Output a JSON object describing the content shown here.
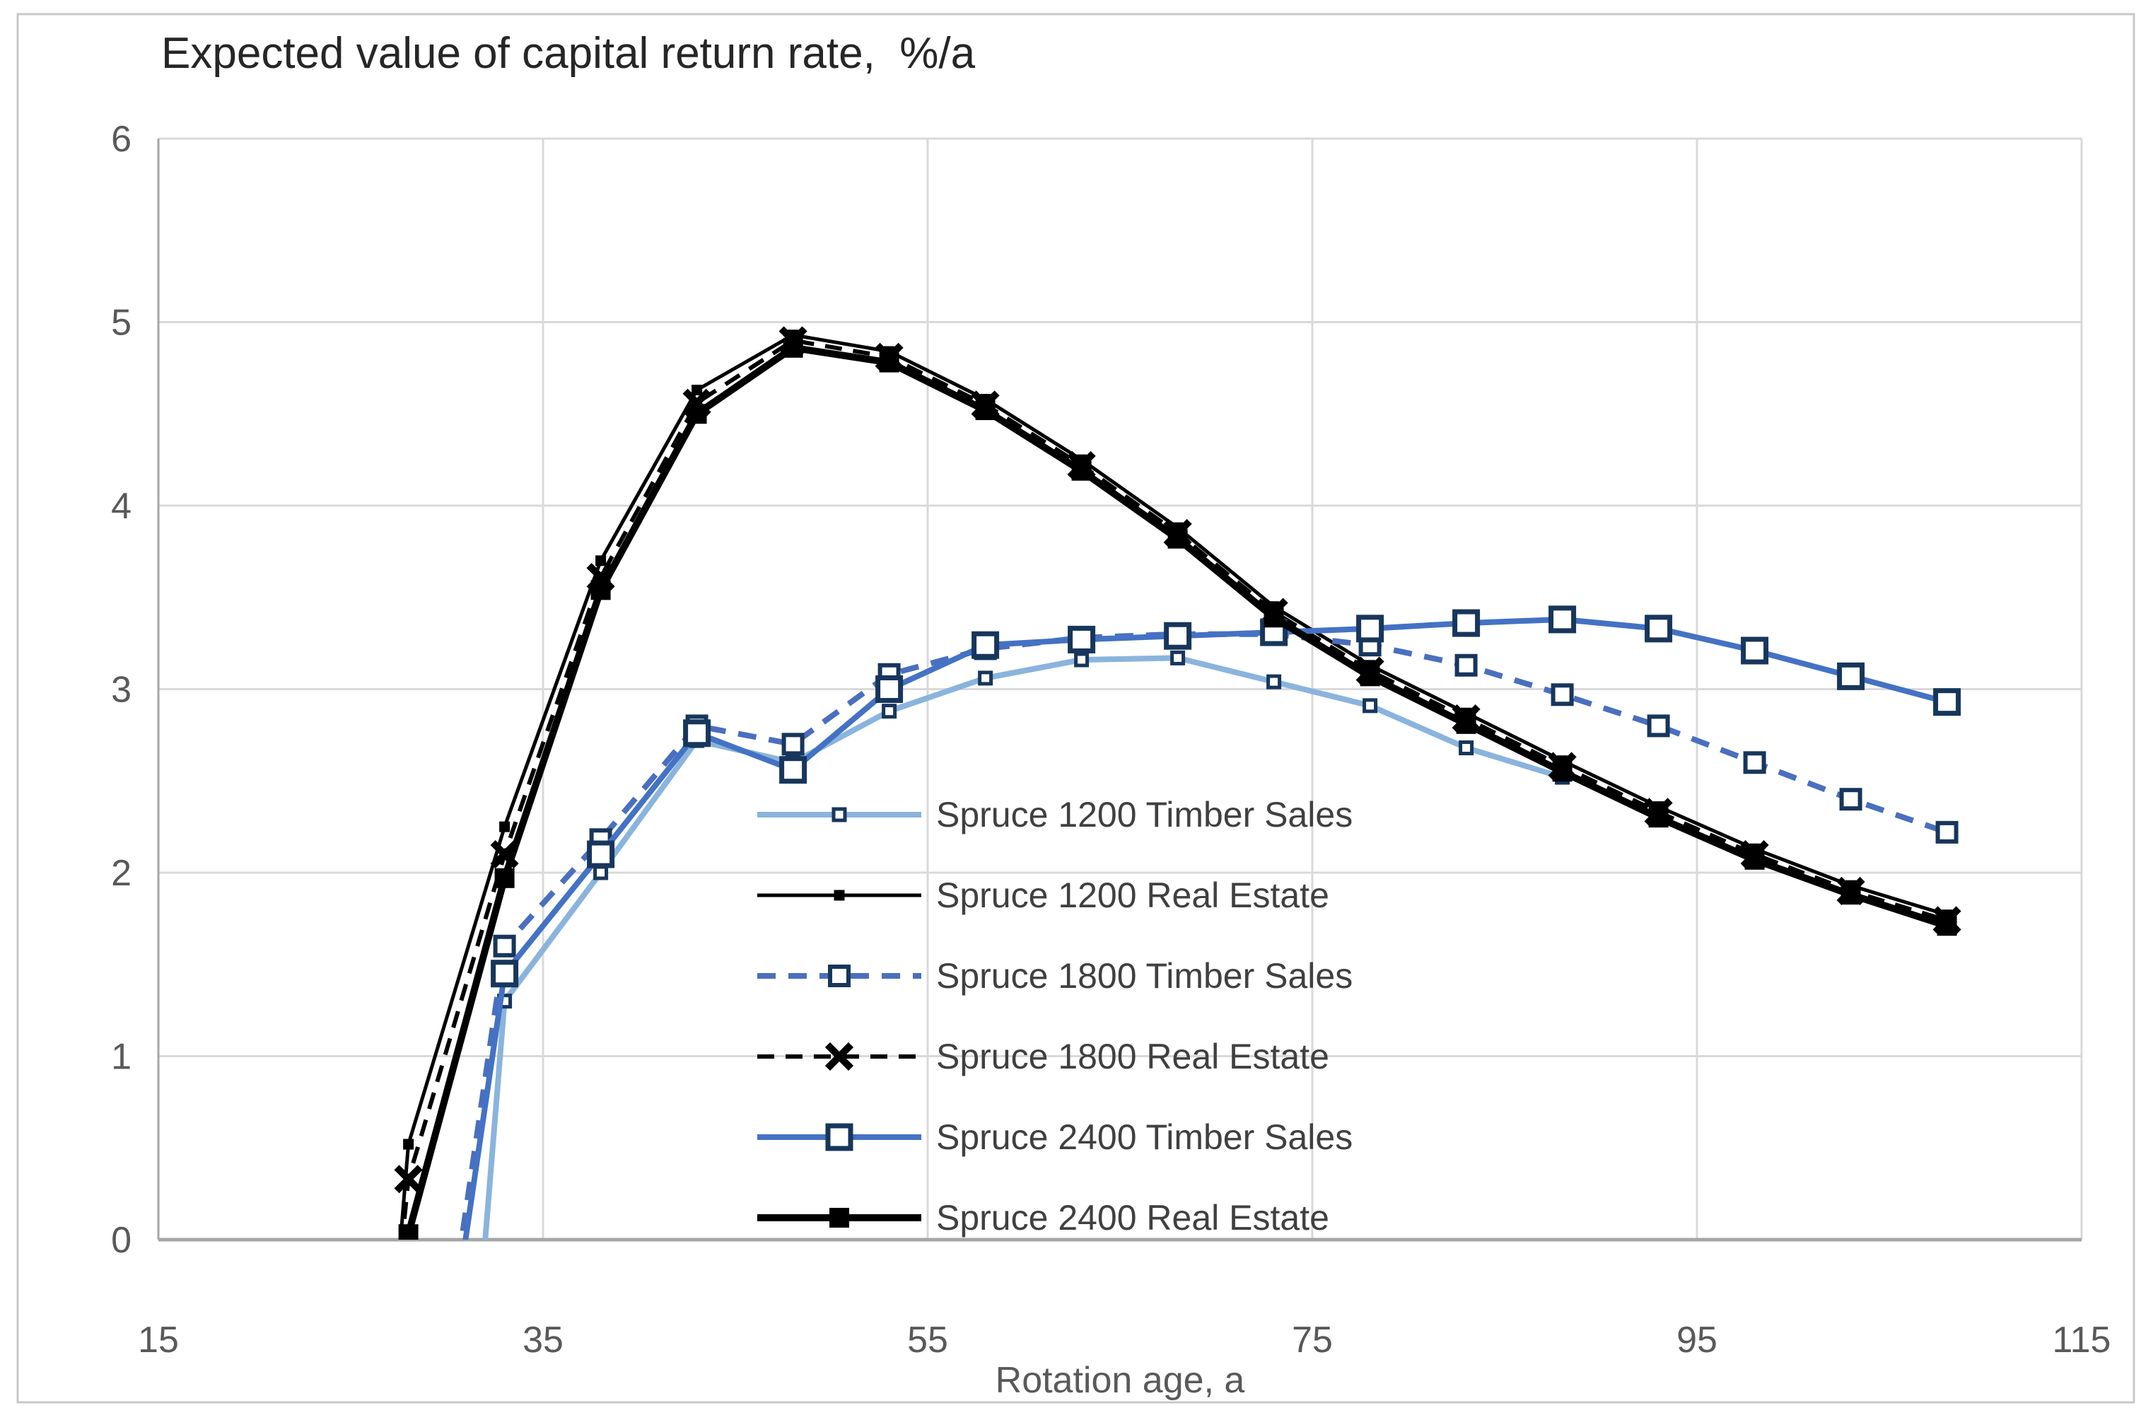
{
  "chart_data": {
    "type": "line",
    "title": "Expected value of capital return rate,  %/a",
    "xlabel": "Rotation age, a",
    "ylabel": "",
    "xlim": [
      15,
      115
    ],
    "ylim": [
      0,
      6
    ],
    "x_ticks": [
      "15",
      "35",
      "55",
      "75",
      "95",
      "115"
    ],
    "x_tick_values": [
      15,
      35,
      55,
      75,
      95,
      115
    ],
    "y_ticks": [
      "0",
      "1",
      "2",
      "3",
      "4",
      "5",
      "6"
    ],
    "y_tick_values": [
      0,
      1,
      2,
      3,
      4,
      5,
      6
    ],
    "grid": "on",
    "legend_position": "inside-center",
    "style": {
      "background": "#ffffff",
      "outer_border": "#c8c8c8",
      "gridline_color": "#d9d9d9",
      "axis_color": "#a6a6a6",
      "tick_text_color": "#595959",
      "title_color": "#262626",
      "legend_text_color": "#404040",
      "marker_edge_color": "#17365c"
    },
    "series": [
      {
        "name": "Spruce 1200 Timber Sales",
        "color": "#8ab4dd",
        "line_width": 8,
        "dash": null,
        "marker": {
          "shape": "square-open",
          "size": 16,
          "stroke": 5
        },
        "line_start": [
          31.9,
          -0.12
        ],
        "points": [
          [
            33,
            1.3
          ],
          [
            38,
            2.0
          ],
          [
            43,
            2.72
          ],
          [
            48,
            2.6
          ],
          [
            53,
            2.88
          ],
          [
            58,
            3.06
          ],
          [
            63,
            3.16
          ],
          [
            68,
            3.17
          ],
          [
            73,
            3.04
          ],
          [
            78,
            2.91
          ],
          [
            83,
            2.68
          ],
          [
            88,
            2.52
          ]
        ]
      },
      {
        "name": "Spruce 1200 Real Estate",
        "color": "#000000",
        "line_width": 5,
        "dash": null,
        "marker": {
          "shape": "square-filled",
          "size": 15,
          "stroke": 0
        },
        "line_start": [
          27.2,
          -0.5
        ],
        "points": [
          [
            28,
            0.52
          ],
          [
            33,
            2.25
          ],
          [
            38,
            3.7
          ],
          [
            43,
            4.63
          ],
          [
            48,
            4.93
          ],
          [
            53,
            4.84
          ],
          [
            58,
            4.58
          ],
          [
            63,
            4.25
          ],
          [
            68,
            3.88
          ],
          [
            73,
            3.45
          ],
          [
            78,
            3.13
          ],
          [
            83,
            2.87
          ],
          [
            88,
            2.61
          ],
          [
            93,
            2.36
          ],
          [
            98,
            2.13
          ],
          [
            103,
            1.93
          ],
          [
            108,
            1.77
          ]
        ]
      },
      {
        "name": "Spruce 1800 Timber Sales",
        "color": "#4a6fbe",
        "line_width": 8,
        "dash": [
          26,
          18
        ],
        "marker": {
          "shape": "square-open",
          "size": 26,
          "stroke": 6
        },
        "line_start": [
          30.6,
          -0.12
        ],
        "points": [
          [
            33,
            1.6
          ],
          [
            38,
            2.18
          ],
          [
            43,
            2.8
          ],
          [
            48,
            2.7
          ],
          [
            53,
            3.08
          ],
          [
            58,
            3.22
          ],
          [
            63,
            3.28
          ],
          [
            68,
            3.3
          ],
          [
            73,
            3.3
          ],
          [
            78,
            3.24
          ],
          [
            83,
            3.13
          ],
          [
            88,
            2.97
          ],
          [
            93,
            2.8
          ],
          [
            98,
            2.6
          ],
          [
            103,
            2.4
          ],
          [
            108,
            2.22
          ]
        ]
      },
      {
        "name": "Spruce 1800 Real Estate",
        "color": "#000000",
        "line_width": 6,
        "dash": [
          24,
          16
        ],
        "marker": {
          "shape": "cross-x",
          "size": 26,
          "stroke": 10
        },
        "line_start": [
          27.2,
          -0.5
        ],
        "points": [
          [
            28,
            0.33
          ],
          [
            33,
            2.1
          ],
          [
            38,
            3.61
          ],
          [
            43,
            4.56
          ],
          [
            48,
            4.9
          ],
          [
            53,
            4.81
          ],
          [
            58,
            4.55
          ],
          [
            63,
            4.22
          ],
          [
            68,
            3.85
          ],
          [
            73,
            3.42
          ],
          [
            78,
            3.1
          ],
          [
            83,
            2.84
          ],
          [
            88,
            2.58
          ],
          [
            93,
            2.33
          ],
          [
            98,
            2.1
          ],
          [
            103,
            1.9
          ],
          [
            108,
            1.74
          ]
        ]
      },
      {
        "name": "Spruce 2400 Timber Sales",
        "color": "#4472c4",
        "line_width": 8,
        "dash": null,
        "marker": {
          "shape": "square-open",
          "size": 32,
          "stroke": 7
        },
        "line_start": [
          30.8,
          -0.12
        ],
        "points": [
          [
            33,
            1.45
          ],
          [
            38,
            2.1
          ],
          [
            43,
            2.76
          ],
          [
            48,
            2.56
          ],
          [
            53,
            3.0
          ],
          [
            58,
            3.24
          ],
          [
            63,
            3.27
          ],
          [
            68,
            3.29
          ],
          [
            73,
            3.31
          ],
          [
            78,
            3.33
          ],
          [
            83,
            3.36
          ],
          [
            88,
            3.38
          ],
          [
            93,
            3.33
          ],
          [
            98,
            3.21
          ],
          [
            103,
            3.07
          ],
          [
            108,
            2.93
          ]
        ]
      },
      {
        "name": "Spruce 2400 Real Estate",
        "color": "#000000",
        "line_width": 10,
        "dash": null,
        "marker": {
          "shape": "square-filled",
          "size": 28,
          "stroke": 0
        },
        "line_start": [
          27.2,
          -0.5
        ],
        "points": [
          [
            28,
            0.03
          ],
          [
            33,
            1.97
          ],
          [
            38,
            3.54
          ],
          [
            43,
            4.5
          ],
          [
            48,
            4.86
          ],
          [
            53,
            4.78
          ],
          [
            58,
            4.52
          ],
          [
            63,
            4.19
          ],
          [
            68,
            3.82
          ],
          [
            73,
            3.39
          ],
          [
            78,
            3.07
          ],
          [
            83,
            2.81
          ],
          [
            88,
            2.55
          ],
          [
            93,
            2.3
          ],
          [
            98,
            2.07
          ],
          [
            103,
            1.88
          ],
          [
            108,
            1.71
          ]
        ]
      }
    ]
  }
}
